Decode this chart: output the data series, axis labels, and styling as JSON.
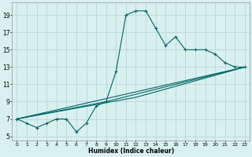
{
  "xlabel": "Humidex (Indice chaleur)",
  "bg_color": "#d8f0ee",
  "grid_color": "#b8d8d4",
  "line_color": "#006666",
  "marker": "+",
  "xlim": [
    -0.5,
    23.5
  ],
  "ylim": [
    4.5,
    20.5
  ],
  "yticks": [
    5,
    7,
    9,
    11,
    13,
    15,
    17,
    19
  ],
  "xticks": [
    0,
    1,
    2,
    3,
    4,
    5,
    6,
    7,
    8,
    9,
    10,
    11,
    12,
    13,
    14,
    15,
    16,
    17,
    18,
    19,
    20,
    21,
    22,
    23
  ],
  "series": [
    [
      0,
      7.0
    ],
    [
      1,
      6.5
    ],
    [
      2,
      6.0
    ],
    [
      3,
      6.5
    ],
    [
      4,
      7.0
    ],
    [
      5,
      7.0
    ],
    [
      6,
      5.5
    ],
    [
      7,
      6.5
    ],
    [
      8,
      8.5
    ],
    [
      9,
      9.0
    ],
    [
      10,
      12.5
    ],
    [
      11,
      19.0
    ],
    [
      12,
      19.5
    ],
    [
      13,
      19.5
    ],
    [
      14,
      17.5
    ],
    [
      15,
      15.5
    ],
    [
      16,
      16.5
    ],
    [
      17,
      15.0
    ],
    [
      18,
      15.0
    ],
    [
      19,
      15.0
    ],
    [
      20,
      14.5
    ],
    [
      21,
      13.5
    ],
    [
      22,
      13.0
    ],
    [
      23,
      13.0
    ]
  ],
  "line_straight": [
    [
      0,
      7.0
    ],
    [
      23,
      13.0
    ]
  ],
  "line_mid1": [
    [
      0,
      7.0
    ],
    [
      12,
      9.5
    ],
    [
      23,
      13.0
    ]
  ],
  "line_mid2": [
    [
      0,
      7.0
    ],
    [
      9,
      9.0
    ],
    [
      23,
      13.0
    ]
  ]
}
